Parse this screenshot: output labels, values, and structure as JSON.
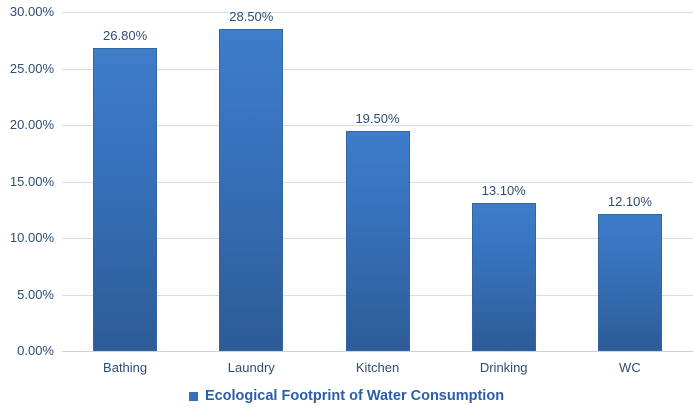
{
  "chart_data": {
    "type": "bar",
    "title": "",
    "xlabel": "",
    "ylabel": "",
    "categories": [
      "Bathing",
      "Laundry",
      "Kitchen",
      "Drinking",
      "WC"
    ],
    "values": [
      26.8,
      28.5,
      19.5,
      13.1,
      12.1
    ],
    "data_labels": [
      "26.80%",
      "28.50%",
      "19.50%",
      "13.10%",
      "12.10%"
    ],
    "series_name": "Ecological Footprint of Water Consumption",
    "ylim": [
      0,
      30
    ],
    "ytick_step": 5,
    "ytick_labels": [
      "0.00%",
      "5.00%",
      "10.00%",
      "15.00%",
      "20.00%",
      "25.00%",
      "30.00%"
    ],
    "grid": true,
    "legend_position": "bottom-center",
    "colors": {
      "bar_gradient_top": "#3E7DCB",
      "bar_gradient_bottom": "#2D5C97",
      "bar_border": "#34659F",
      "gridline": "#CFDEF0",
      "axis_line": "#C3D4E9",
      "axis_text": "#2F4D75",
      "legend_text": "#2A5DAB",
      "legend_marker": "#3A70B8",
      "background": "#FFFFFF"
    }
  }
}
